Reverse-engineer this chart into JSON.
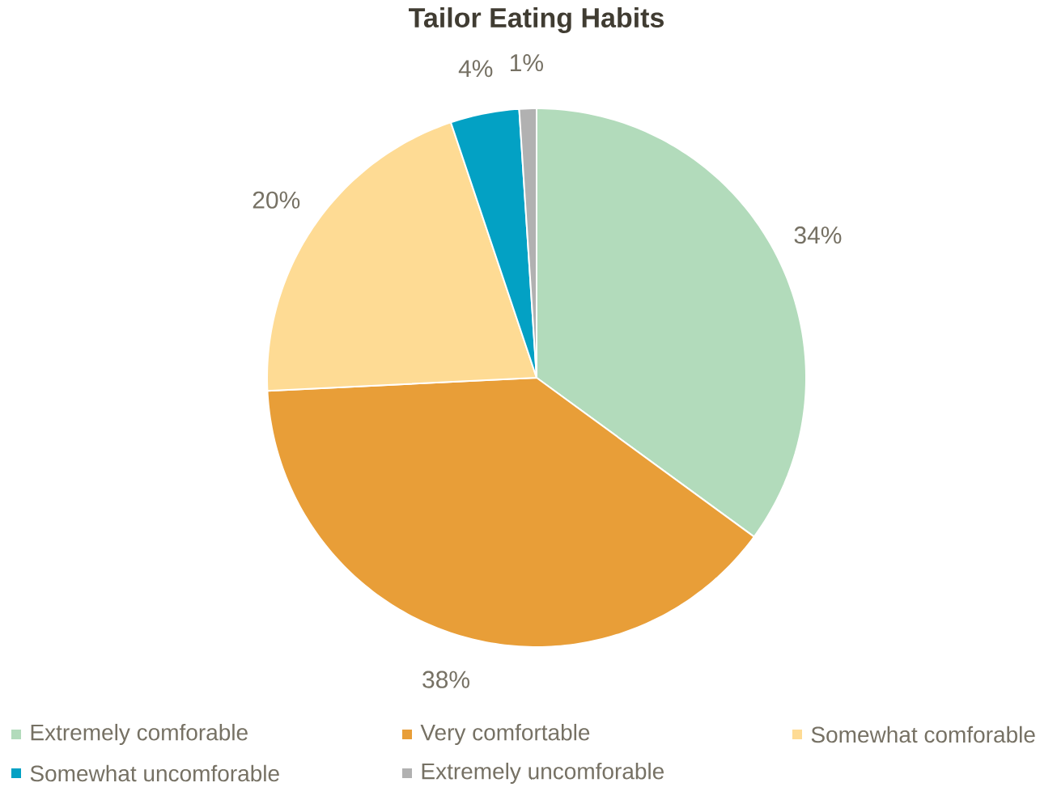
{
  "chart_data": {
    "type": "pie",
    "title": "Tailor Eating Habits",
    "categories": [
      "Extremely comforable",
      "Very comfortable",
      "Somewhat comforable",
      "Somewhat uncomforable",
      "Extremely uncomforable"
    ],
    "values": [
      34,
      38,
      20,
      4,
      1
    ],
    "colors": [
      "#b2dbbb",
      "#e89e38",
      "#fedb94",
      "#03a1c4",
      "#b1b1b1"
    ],
    "value_labels": [
      "34%",
      "38%",
      "20%",
      "4%",
      "1%"
    ],
    "legend": "bottom"
  }
}
